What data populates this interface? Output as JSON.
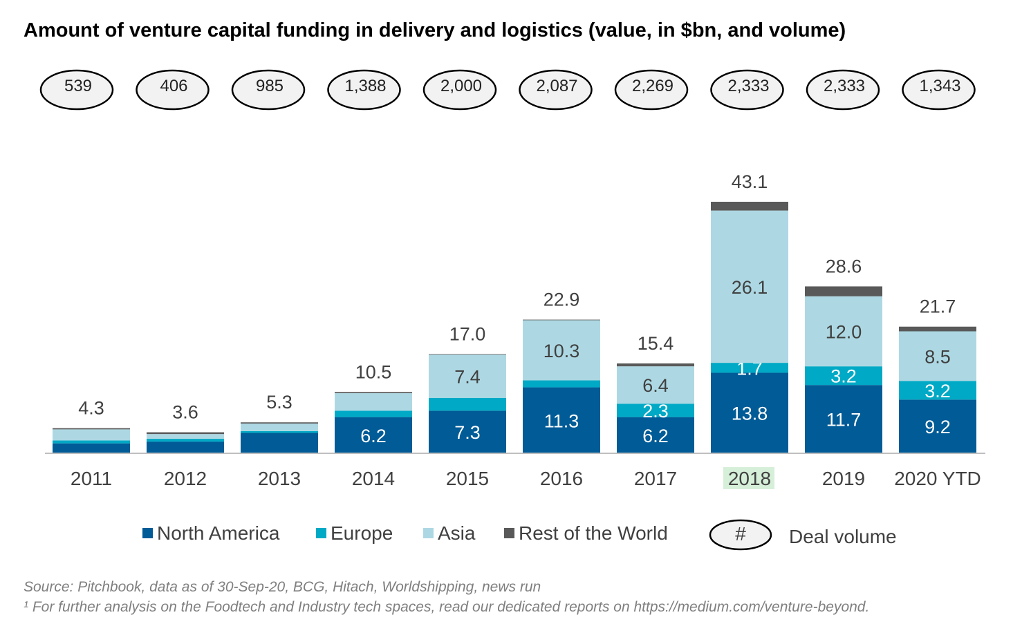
{
  "title": "Amount of venture capital funding in delivery and logistics (value, in $bn, and volume)",
  "chart_data": {
    "type": "bar",
    "stacked": true,
    "title": "Amount of venture capital funding in delivery and logistics (value, in $bn, and volume)",
    "xlabel": "",
    "ylabel": "",
    "categories": [
      "2011",
      "2012",
      "2013",
      "2014",
      "2015",
      "2016",
      "2017",
      "2018",
      "2019",
      "2020 YTD"
    ],
    "highlighted_category": "2018",
    "series": [
      {
        "name": "North America",
        "color": "#005b96",
        "values": [
          1.7,
          2.0,
          3.5,
          6.2,
          7.3,
          11.3,
          6.2,
          13.8,
          11.7,
          9.2
        ],
        "labels": [
          "",
          "",
          "",
          "6.2",
          "7.3",
          "11.3",
          "6.2",
          "13.8",
          "11.7",
          "9.2"
        ]
      },
      {
        "name": "Europe",
        "color": "#00a9c5",
        "values": [
          0.5,
          0.5,
          0.3,
          1.1,
          2.2,
          1.2,
          2.3,
          1.7,
          3.2,
          3.2
        ],
        "labels": [
          "",
          "",
          "",
          "",
          "",
          "",
          "2.3",
          "1.7",
          "3.2",
          "3.2"
        ]
      },
      {
        "name": "Asia",
        "color": "#add8e3",
        "values": [
          1.9,
          0.8,
          1.3,
          3.0,
          7.4,
          10.3,
          6.4,
          26.1,
          12.0,
          8.5
        ],
        "labels": [
          "",
          "",
          "",
          "",
          "7.4",
          "10.3",
          "6.4",
          "26.1",
          "12.0",
          "8.5"
        ]
      },
      {
        "name": "Rest of the World",
        "color": "#595959",
        "values": [
          0.2,
          0.3,
          0.2,
          0.2,
          0.1,
          0.1,
          0.5,
          1.5,
          1.7,
          0.8
        ],
        "labels": [
          "",
          "",
          "",
          "",
          "",
          "",
          "",
          "",
          "",
          ""
        ]
      }
    ],
    "totals": [
      "4.3",
      "3.6",
      "5.3",
      "10.5",
      "17.0",
      "22.9",
      "15.4",
      "43.1",
      "28.6",
      "21.7"
    ],
    "deal_volume": [
      "539",
      "406",
      "985",
      "1,388",
      "2,000",
      "2,087",
      "2,269",
      "2,333",
      "2,333",
      "1,343"
    ],
    "ylim": [
      0,
      43.1
    ],
    "grid": false,
    "legend_position": "bottom"
  },
  "legend": {
    "items": [
      "North America",
      "Europe",
      "Asia",
      "Rest of the World"
    ],
    "deal_volume_symbol": "#",
    "deal_volume_label": "Deal volume"
  },
  "source": "Source: Pitchbook, data as of 30-Sep-20, BCG, Hitach, Worldshipping, news run",
  "footnote": "¹ For further analysis on the Foodtech and Industry tech spaces, read our dedicated reports on https://medium.com/venture-beyond."
}
